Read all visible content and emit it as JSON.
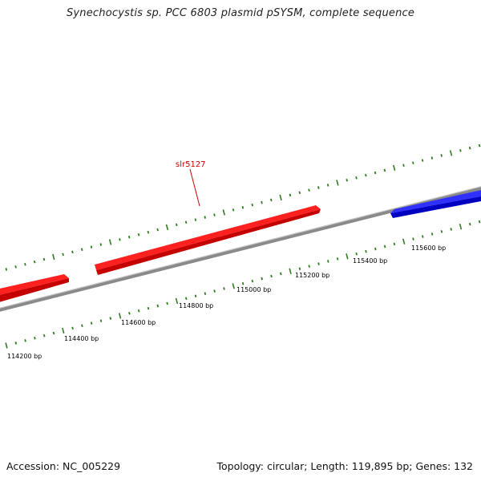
{
  "title": "Synechocystis sp. PCC 6803 plasmid pSYSM, complete sequence",
  "footer": {
    "accession": "Accession: NC_005229",
    "topology": "Topology: circular; Length: 119,895 bp; Genes: 132"
  },
  "colors": {
    "forward_gene": "#ff0000",
    "reverse_gene": "#0000ff",
    "backbone": "#888888",
    "ticks": "#2e7d1f",
    "gene_label": "#cc0000"
  },
  "gene_labels": [
    {
      "text": "slr5127"
    }
  ],
  "bp_labels": [
    "114200 bp",
    "114400 bp",
    "114600 bp",
    "114800 bp",
    "115000 bp",
    "115200 bp",
    "115400 bp",
    "115600 bp"
  ]
}
